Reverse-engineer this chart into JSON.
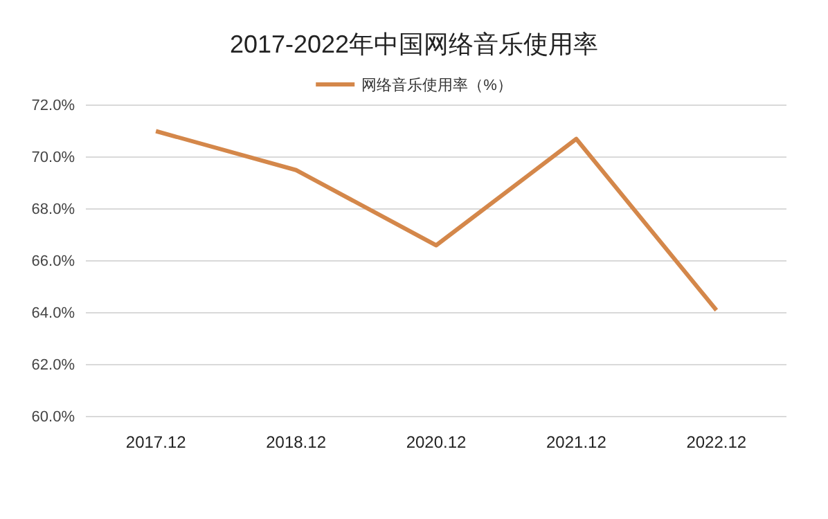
{
  "chart_data": {
    "type": "line",
    "title": "2017-2022年中国网络音乐使用率",
    "categories": [
      "2017.12",
      "2018.12",
      "2020.12",
      "2021.12",
      "2022.12"
    ],
    "series": [
      {
        "name": "网络音乐使用率（%）",
        "color": "#d4874a",
        "values": [
          71.0,
          69.5,
          66.6,
          70.7,
          64.1
        ]
      }
    ],
    "ylim": [
      60,
      72
    ],
    "yticks": [
      {
        "value": 60,
        "label": "60.0%"
      },
      {
        "value": 62,
        "label": "62.0%"
      },
      {
        "value": 64,
        "label": "64.0%"
      },
      {
        "value": 66,
        "label": "66.0%"
      },
      {
        "value": 68,
        "label": "68.0%"
      },
      {
        "value": 70,
        "label": "70.0%"
      },
      {
        "value": 72,
        "label": "72.0%"
      }
    ],
    "grid": "y",
    "legend": "top",
    "marker": "none",
    "line_style": "solid"
  }
}
